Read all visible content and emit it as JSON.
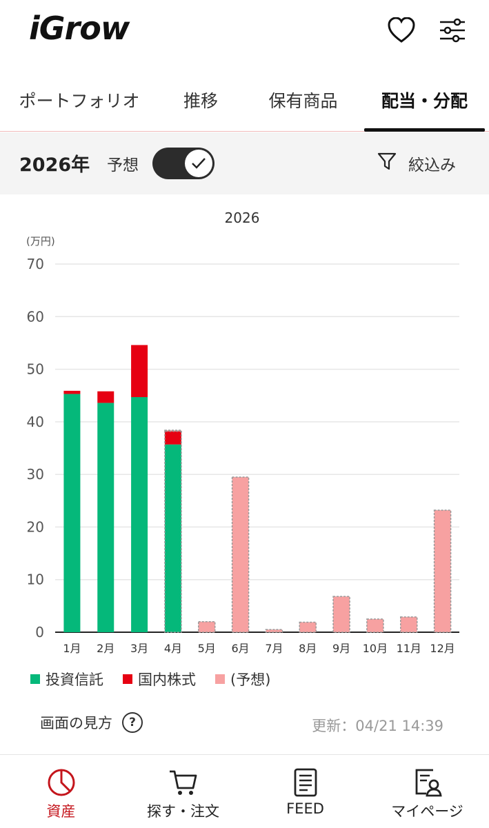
{
  "header": {
    "logo_text": "iGrow",
    "favorite_icon": "heart-icon",
    "settings_icon": "sliders-icon"
  },
  "tabs": [
    {
      "label": "ポートフォリオ",
      "active": false
    },
    {
      "label": "推移",
      "active": false
    },
    {
      "label": "保有商品",
      "active": false
    },
    {
      "label": "配当・分配",
      "active": true
    }
  ],
  "filter_bar": {
    "year": "2026年",
    "forecast_label": "予想",
    "forecast_enabled": true,
    "filter_label": "絞込み",
    "filter_icon": "funnel-icon"
  },
  "chart_data": {
    "type": "bar",
    "stacked": true,
    "title": "2026",
    "unit_label": "(万円)",
    "ylim": [
      0,
      70
    ],
    "yticks": [
      0,
      10,
      20,
      30,
      40,
      50,
      60,
      70
    ],
    "grid": true,
    "categories": [
      "1月",
      "2月",
      "3月",
      "4月",
      "5月",
      "6月",
      "7月",
      "8月",
      "9月",
      "10月",
      "11月",
      "12月"
    ],
    "series": [
      {
        "name": "投資信託",
        "color": "#05b87a",
        "values": [
          45.3,
          43.6,
          44.7,
          35.7,
          0,
          0,
          0,
          0,
          0,
          0,
          0,
          0
        ]
      },
      {
        "name": "国内株式",
        "color": "#e60012",
        "values": [
          0.6,
          2.2,
          9.9,
          2.5,
          0,
          0,
          0,
          0,
          0,
          0,
          0,
          0
        ]
      },
      {
        "name": "(予想)",
        "color": "#f7a1a1",
        "values": [
          0,
          0,
          0,
          0.2,
          2.0,
          29.5,
          0.5,
          1.9,
          6.8,
          2.5,
          2.9,
          23.2
        ]
      }
    ],
    "legend_position": "bottom-left"
  },
  "footer_info": {
    "howto_label": "画面の見方",
    "help_icon": "question-icon",
    "updated": "更新：04/21 14:39"
  },
  "bottom_nav": [
    {
      "label": "資産",
      "icon": "pie-chart-icon",
      "active": true
    },
    {
      "label": "探す・注文",
      "icon": "cart-icon",
      "active": false
    },
    {
      "label": "FEED",
      "icon": "newspaper-icon",
      "active": false
    },
    {
      "label": "マイページ",
      "icon": "profile-document-icon",
      "active": false
    }
  ],
  "colors": {
    "accent_red": "#e60012",
    "nav_active": "#c4151c",
    "fund_green": "#05b87a",
    "forecast_pink": "#f7a1a1"
  }
}
